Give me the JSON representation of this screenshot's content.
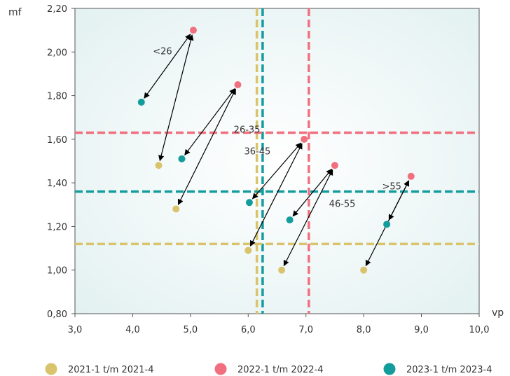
{
  "chart_data": {
    "type": "scatter",
    "title": "",
    "xlabel": "vp",
    "ylabel": "mf",
    "xlim": [
      3.0,
      10.0
    ],
    "ylim": [
      0.8,
      2.2
    ],
    "x_ticks": [
      "3,0",
      "4,0",
      "5,0",
      "6,0",
      "7,0",
      "8,0",
      "9,0",
      "10,0"
    ],
    "y_ticks": [
      "0,80",
      "1,00",
      "1,20",
      "1,40",
      "1,60",
      "1,80",
      "2,00",
      "2,20"
    ],
    "x_tick_values": [
      3,
      4,
      5,
      6,
      7,
      8,
      9,
      10
    ],
    "y_tick_values": [
      0.8,
      1.0,
      1.2,
      1.4,
      1.6,
      1.8,
      2.0,
      2.2
    ],
    "grid": false,
    "legend_position": "bottom",
    "series": [
      {
        "name": "2021-1 t/m 2021-4",
        "color": "#D9C46C",
        "points": [
          {
            "group": "<26",
            "x": 4.45,
            "y": 1.48
          },
          {
            "group": "26-35",
            "x": 4.75,
            "y": 1.28
          },
          {
            "group": "36-45",
            "x": 6.0,
            "y": 1.09
          },
          {
            "group": "46-55",
            "x": 6.58,
            "y": 1.0
          },
          {
            "group": ">55",
            "x": 8.0,
            "y": 1.0
          }
        ]
      },
      {
        "name": "2022-1 t/m 2022-4",
        "color": "#F0707F",
        "points": [
          {
            "group": "<26",
            "x": 5.05,
            "y": 2.1
          },
          {
            "group": "26-35",
            "x": 5.82,
            "y": 1.85
          },
          {
            "group": "36-45",
            "x": 6.97,
            "y": 1.6
          },
          {
            "group": "46-55",
            "x": 7.5,
            "y": 1.48
          },
          {
            "group": ">55",
            "x": 8.82,
            "y": 1.43
          }
        ]
      },
      {
        "name": "2023-1 t/m 2023-4",
        "color": "#139C9C",
        "points": [
          {
            "group": "<26",
            "x": 4.15,
            "y": 1.77
          },
          {
            "group": "26-35",
            "x": 4.85,
            "y": 1.51
          },
          {
            "group": "36-45",
            "x": 6.02,
            "y": 1.31
          },
          {
            "group": "46-55",
            "x": 6.72,
            "y": 1.23
          },
          {
            "group": ">55",
            "x": 8.4,
            "y": 1.21
          }
        ]
      }
    ],
    "group_labels": [
      {
        "text": "<26",
        "x": 4.35,
        "y": 1.99
      },
      {
        "text": "26-35",
        "x": 5.75,
        "y": 1.63
      },
      {
        "text": "36-45",
        "x": 5.93,
        "y": 1.53
      },
      {
        "text": "46-55",
        "x": 7.4,
        "y": 1.29
      },
      {
        "text": ">55",
        "x": 8.32,
        "y": 1.37
      }
    ],
    "reference_lines": [
      {
        "orientation": "vertical",
        "value": 6.15,
        "color": "#D9C46C"
      },
      {
        "orientation": "vertical",
        "value": 6.25,
        "color": "#139C9C"
      },
      {
        "orientation": "vertical",
        "value": 7.05,
        "color": "#F0707F"
      },
      {
        "orientation": "horizontal",
        "value": 1.63,
        "color": "#F0707F"
      },
      {
        "orientation": "horizontal",
        "value": 1.36,
        "color": "#139C9C"
      },
      {
        "orientation": "horizontal",
        "value": 1.12,
        "color": "#D9C46C"
      }
    ]
  }
}
